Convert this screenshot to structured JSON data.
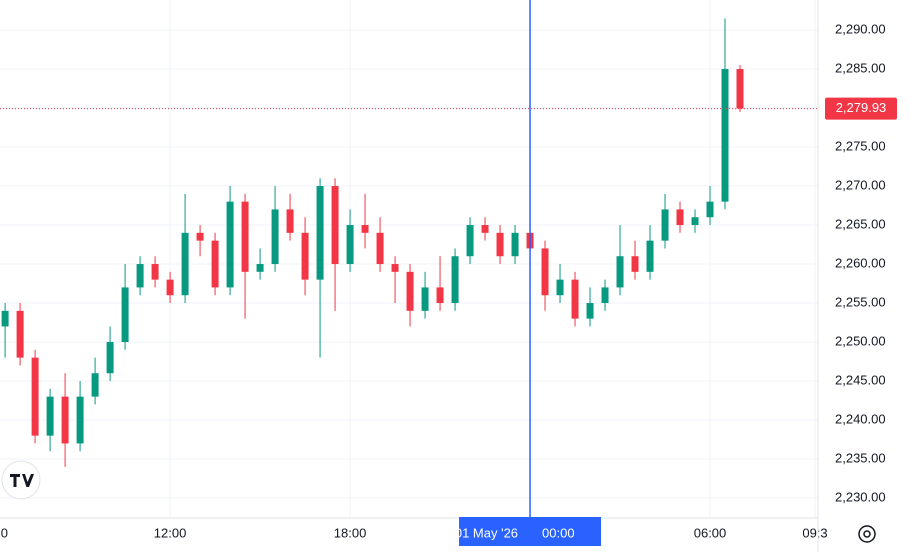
{
  "chart_data": {
    "type": "candlestick",
    "x": [
      6.5,
      7,
      7.5,
      8,
      8.5,
      9,
      9.5,
      10,
      10.5,
      11,
      11.5,
      12,
      12.5,
      13,
      13.5,
      14,
      14.5,
      15,
      15.5,
      16,
      16.5,
      17,
      17.5,
      18,
      18.5,
      19,
      19.5,
      20,
      20.5,
      21,
      21.5,
      22,
      22.5,
      23,
      23.5,
      24,
      24.5,
      25,
      25.5,
      26,
      26.5,
      27,
      27.5,
      28,
      28.5,
      29,
      29.5,
      30,
      30.5,
      31
    ],
    "open": [
      2252,
      2254,
      2248,
      2238,
      2243,
      2237,
      2243,
      2246,
      2250,
      2257,
      2260,
      2258,
      2256,
      2264,
      2263,
      2257,
      2268,
      2259,
      2260,
      2267,
      2264,
      2258,
      2270,
      2260,
      2265,
      2264,
      2260,
      2259,
      2254,
      2257,
      2255,
      2261,
      2265,
      2264,
      2261,
      2264,
      2262,
      2256,
      2258,
      2253,
      2255,
      2257,
      2261,
      2259,
      2263,
      2267,
      2265,
      2266,
      2268,
      2285
    ],
    "high": [
      2255,
      2255,
      2249,
      2244,
      2246,
      2245,
      2248,
      2252,
      2260,
      2261,
      2261,
      2259,
      2269,
      2265,
      2264,
      2270,
      2269,
      2262,
      2270,
      2269,
      2266,
      2271,
      2271,
      2267,
      2269,
      2266,
      2261,
      2260,
      2259,
      2261,
      2262,
      2266,
      2266,
      2265,
      2265,
      2265,
      2263,
      2260,
      2259,
      2257,
      2258,
      2265,
      2263,
      2265,
      2269,
      2268,
      2267,
      2270,
      2291.5,
      2285.5
    ],
    "low": [
      2248,
      2247,
      2237,
      2236,
      2234,
      2236,
      2242,
      2245,
      2249,
      2256,
      2257,
      2255,
      2255,
      2261,
      2256,
      2256,
      2253,
      2258,
      2259,
      2263,
      2256,
      2248,
      2254,
      2259,
      2262,
      2259,
      2255,
      2252,
      2253,
      2254,
      2254,
      2260,
      2263,
      2260,
      2260,
      2260,
      2254,
      2255,
      2252,
      2252,
      2254,
      2256,
      2258,
      2258,
      2262,
      2264,
      2264,
      2265,
      2267,
      2279.5
    ],
    "close": [
      2254,
      2248,
      2238,
      2243,
      2237,
      2243,
      2246,
      2250,
      2257,
      2260,
      2258,
      2256,
      2264,
      2263,
      2257,
      2268,
      2259,
      2260,
      2267,
      2264,
      2258,
      2270,
      2260,
      2265,
      2264,
      2260,
      2259,
      2254,
      2257,
      2255,
      2261,
      2265,
      2264,
      2261,
      2264,
      2262,
      2256,
      2258,
      2253,
      2255,
      2257,
      2261,
      2259,
      2263,
      2267,
      2265,
      2266,
      2268,
      2285,
      2279.93
    ],
    "up_color": "#089981",
    "down_color": "#f23645",
    "xlim": [
      6.33,
      33.6
    ],
    "xticks": [
      {
        "value": 6,
        "label": "0"
      },
      {
        "value": 12,
        "label": "12:00"
      },
      {
        "value": 18,
        "label": "18:00"
      },
      {
        "value": 30,
        "label": "06:00"
      },
      {
        "value": 33.5,
        "label": "09:3"
      }
    ],
    "ylim": [
      2227.44,
      2293.85
    ],
    "yticks": [
      {
        "value": 2230,
        "label": "2,230.00"
      },
      {
        "value": 2235,
        "label": "2,235.00"
      },
      {
        "value": 2240,
        "label": "2,240.00"
      },
      {
        "value": 2245,
        "label": "2,245.00"
      },
      {
        "value": 2250,
        "label": "2,250.00"
      },
      {
        "value": 2255,
        "label": "2,255.00"
      },
      {
        "value": 2260,
        "label": "2,260.00"
      },
      {
        "value": 2265,
        "label": "2,265.00"
      },
      {
        "value": 2270,
        "label": "2,270.00"
      },
      {
        "value": 2275,
        "label": "2,275.00"
      },
      {
        "value": 2280,
        "label": "2,280.00"
      },
      {
        "value": 2285,
        "label": "2,285.00"
      },
      {
        "value": 2290,
        "label": "2,290.00"
      }
    ],
    "last_price": {
      "value": 2279.93,
      "label": "2,279.93"
    },
    "crosshair": {
      "x": 24,
      "date": "01 May '26",
      "time": "00:00"
    },
    "grid": true
  }
}
